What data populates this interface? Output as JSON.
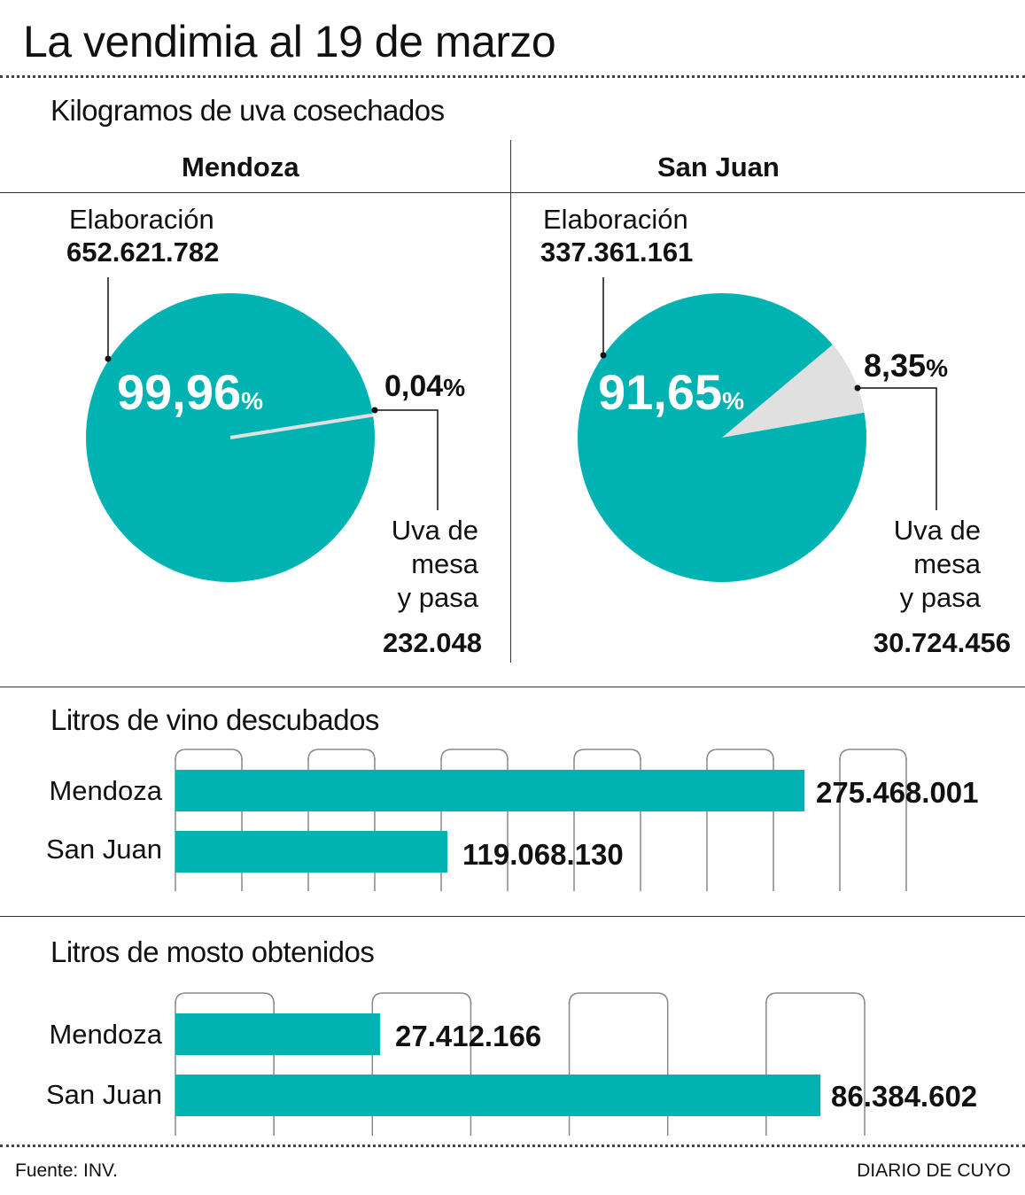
{
  "title": "La vendimia al 19 de marzo",
  "section1": {
    "title": "Kilogramos de uva cosechados",
    "provinces": [
      {
        "name": "Mendoza",
        "elab_label": "Elaboración",
        "elab_value": "652.621.782",
        "elab_pct": "99,96",
        "mesa_pct": "0,04",
        "mesa_label": [
          "Uva de",
          "mesa",
          "y pasa"
        ],
        "mesa_value": "232.048"
      },
      {
        "name": "San Juan",
        "elab_label": "Elaboración",
        "elab_value": "337.361.161",
        "elab_pct": "91,65",
        "mesa_pct": "8,35",
        "mesa_label": [
          "Uva de",
          "mesa",
          "y pasa"
        ],
        "mesa_value": "30.724.456"
      }
    ],
    "pct_sign": "%"
  },
  "section2": {
    "title": "Litros de vino descubados"
  },
  "section3": {
    "title": "Litros de mosto obtenidos"
  },
  "footer": {
    "source": "Fuente: INV.",
    "brand": "DIARIO DE CUYO"
  },
  "colors": {
    "teal": "#00b3b3",
    "gray": "#e0e0e0",
    "grid": "#888888"
  },
  "chart_data": [
    {
      "type": "pie",
      "title": "Mendoza",
      "labels": [
        "Elaboración",
        "Uva de mesa y pasa"
      ],
      "values": [
        652621782,
        232048
      ],
      "percent": [
        99.96,
        0.04
      ]
    },
    {
      "type": "pie",
      "title": "San Juan",
      "labels": [
        "Elaboración",
        "Uva de mesa y pasa"
      ],
      "values": [
        337361161,
        30724456
      ],
      "percent": [
        91.65,
        8.35
      ]
    },
    {
      "type": "bar",
      "orientation": "horizontal",
      "title": "Litros de vino descubados",
      "categories": [
        "Mendoza",
        "San Juan"
      ],
      "values": [
        275468001,
        119068130
      ],
      "value_labels": [
        "275.468.001",
        "119.068.130"
      ],
      "xlim": [
        0,
        320000000
      ],
      "grid_intervals": 11
    },
    {
      "type": "bar",
      "orientation": "horizontal",
      "title": "Litros de mosto obtenidos",
      "categories": [
        "Mendoza",
        "San Juan"
      ],
      "values": [
        27412166,
        86384602
      ],
      "value_labels": [
        "27.412.166",
        "86.384.602"
      ],
      "xlim": [
        0,
        92300000
      ],
      "grid_intervals": 7
    }
  ]
}
